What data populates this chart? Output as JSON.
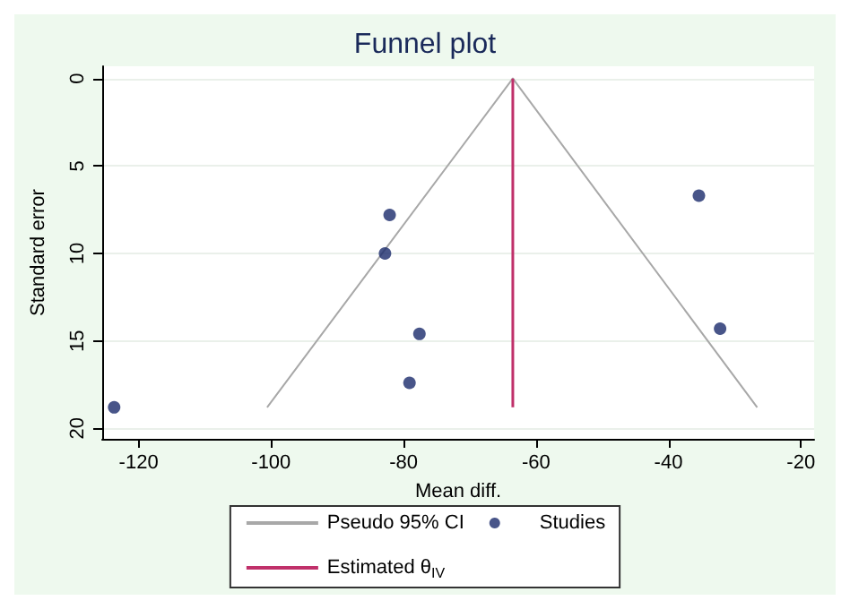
{
  "chart_data": {
    "type": "scatter",
    "title": "Funnel plot",
    "xlabel": "Mean diff.",
    "ylabel": "Standard error",
    "xlim": [
      -125.5,
      -18
    ],
    "xticks": [
      -120,
      -100,
      -80,
      -60,
      -40,
      -20
    ],
    "ylim": [
      20.6,
      -0.7
    ],
    "yticks": [
      0,
      5,
      10,
      15,
      20
    ],
    "grid": "y",
    "legend": "bottom",
    "marker": "circle",
    "series": [
      {
        "name": "Pseudo 95% CI",
        "type": "line",
        "color": "#a8a8a8",
        "marker": "none",
        "x": [
          -100.6,
          -63.5,
          -26.6
        ],
        "values": [
          18.8,
          0,
          18.8
        ]
      },
      {
        "name": "Studies",
        "type": "scatter",
        "color": "#1a2a6c",
        "x": [
          -82.1,
          -82.8,
          -35.4,
          -32.2,
          -77.6,
          -79.1,
          -123.7
        ],
        "values": [
          7.8,
          10.0,
          6.7,
          14.3,
          14.6,
          17.4,
          18.8
        ]
      },
      {
        "name": "Estimated θ$_{IV}$",
        "type": "line",
        "color": "#c0306a",
        "marker": "none",
        "x": [
          -63.5,
          -63.5
        ],
        "values": [
          0,
          18.8
        ]
      }
    ]
  }
}
